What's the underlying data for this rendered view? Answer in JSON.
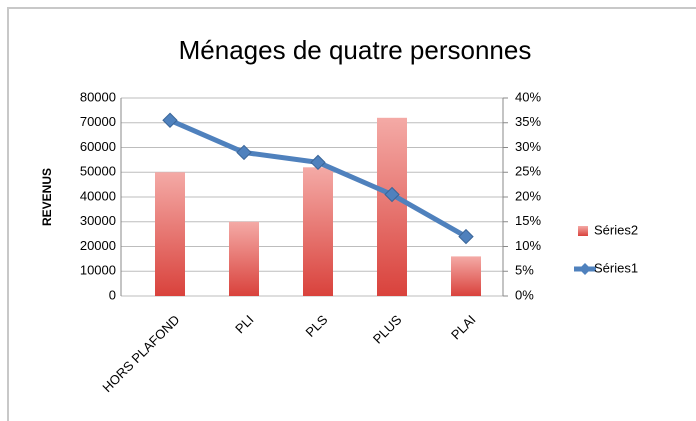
{
  "chart_data": {
    "type": "bar-line",
    "title": "Ménages de quatre personnes",
    "y_label": "REVENUS",
    "categories": [
      "HORS PLAFOND",
      "PLI",
      "PLS",
      "PLUS",
      "PLAI"
    ],
    "series": [
      {
        "name": "Séries2",
        "type": "bar",
        "color": "#e0504a",
        "values": [
          50000,
          30000,
          52000,
          72000,
          16000
        ]
      },
      {
        "name": "Séries1",
        "type": "line",
        "color": "#4f81bd",
        "axis": "y2",
        "values": [
          35.5,
          29,
          27,
          20.5,
          12
        ]
      }
    ],
    "ylim": [
      0,
      80000
    ],
    "yticks": [
      0,
      10000,
      20000,
      30000,
      40000,
      50000,
      60000,
      70000,
      80000
    ],
    "y2lim": [
      0,
      40
    ],
    "y2ticks": [
      {
        "value": 0,
        "label": "0%"
      },
      {
        "value": 5,
        "label": "5%"
      },
      {
        "value": 10,
        "label": "10%"
      },
      {
        "value": 15,
        "label": "15%"
      },
      {
        "value": 20,
        "label": "20%"
      },
      {
        "value": 25,
        "label": "25%"
      },
      {
        "value": 30,
        "label": "30%"
      },
      {
        "value": 35,
        "label": "35%"
      },
      {
        "value": 40,
        "label": "40%"
      }
    ],
    "grid": true,
    "legend": "right"
  }
}
